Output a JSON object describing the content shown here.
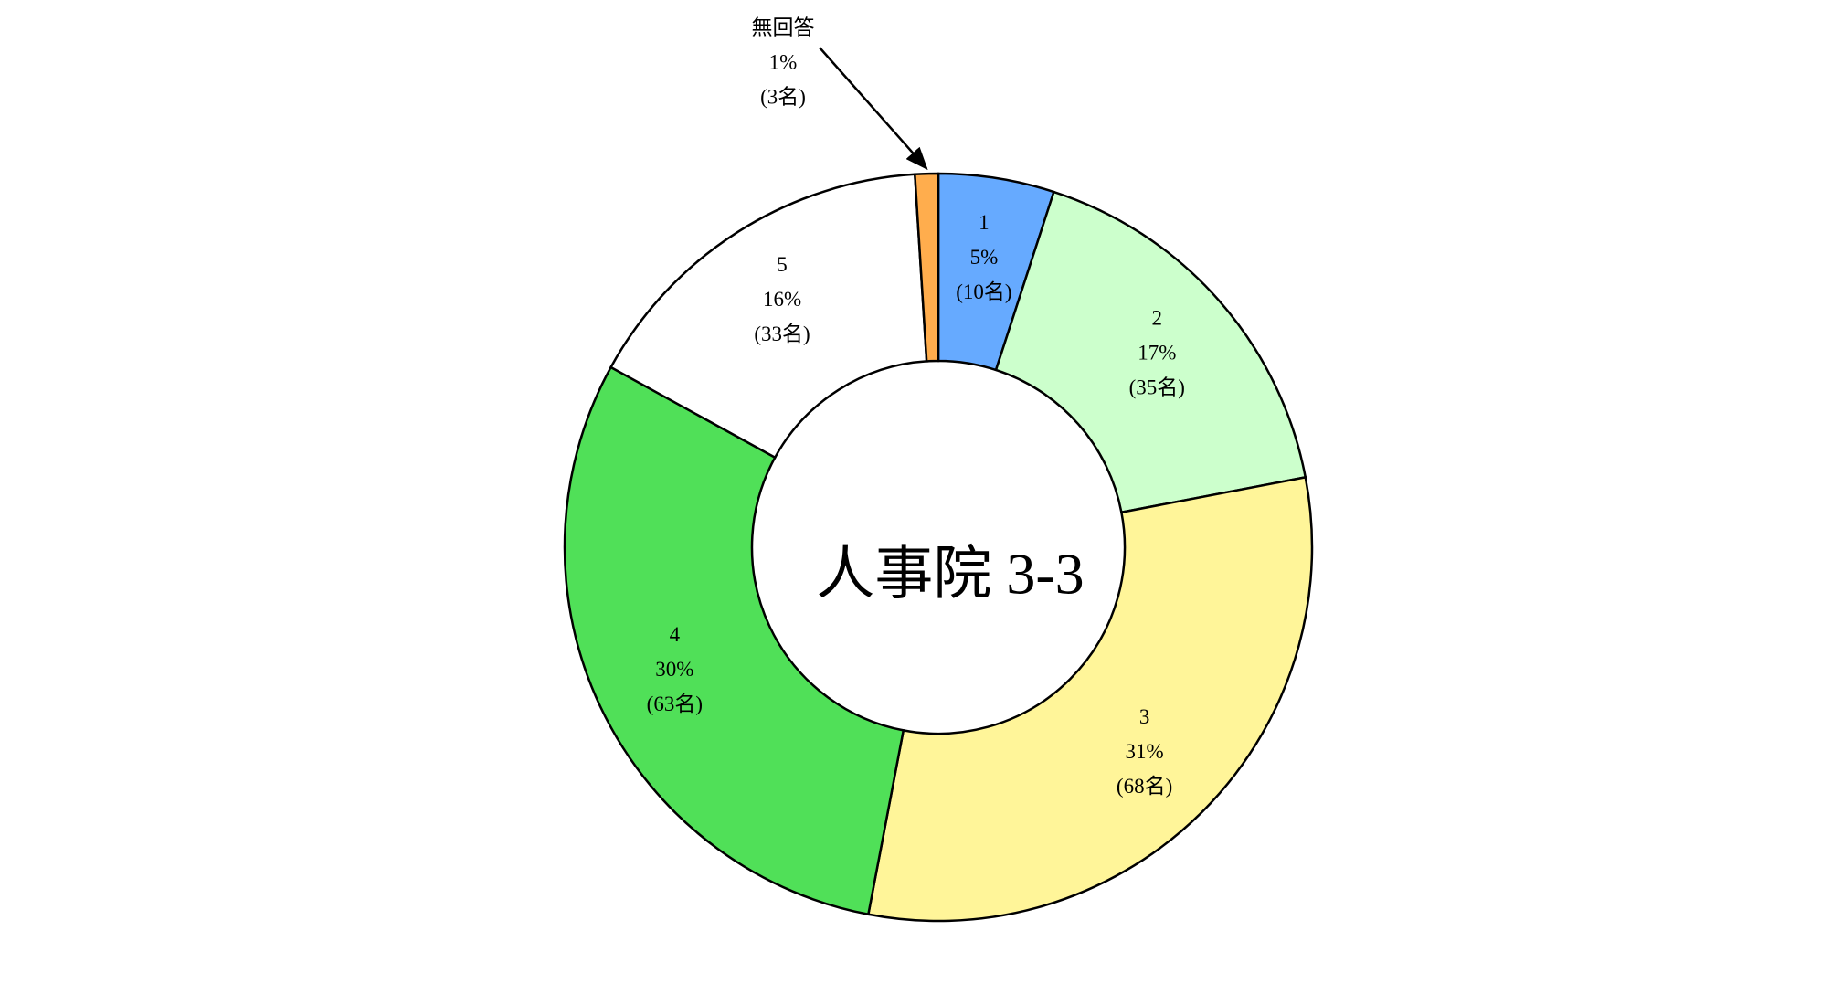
{
  "chart_data": {
    "type": "donut",
    "title": "人事院 3-3",
    "categories": [
      "1",
      "2",
      "3",
      "4",
      "5",
      "無回答"
    ],
    "values": [
      5,
      17,
      31,
      30,
      16,
      1
    ],
    "value_labels": [
      "5%",
      "17%",
      "31%",
      "30%",
      "16%",
      "1%"
    ],
    "counts": [
      10,
      35,
      68,
      63,
      33,
      3
    ],
    "count_labels": [
      "(10名)",
      "(35名)",
      "(68名)",
      "(63名)",
      "(33名)",
      "(3名)"
    ],
    "colors": [
      "#66aaff",
      "#ccffcc",
      "#fff599",
      "#50e058",
      "#ffffff",
      "#ffad4d"
    ]
  }
}
